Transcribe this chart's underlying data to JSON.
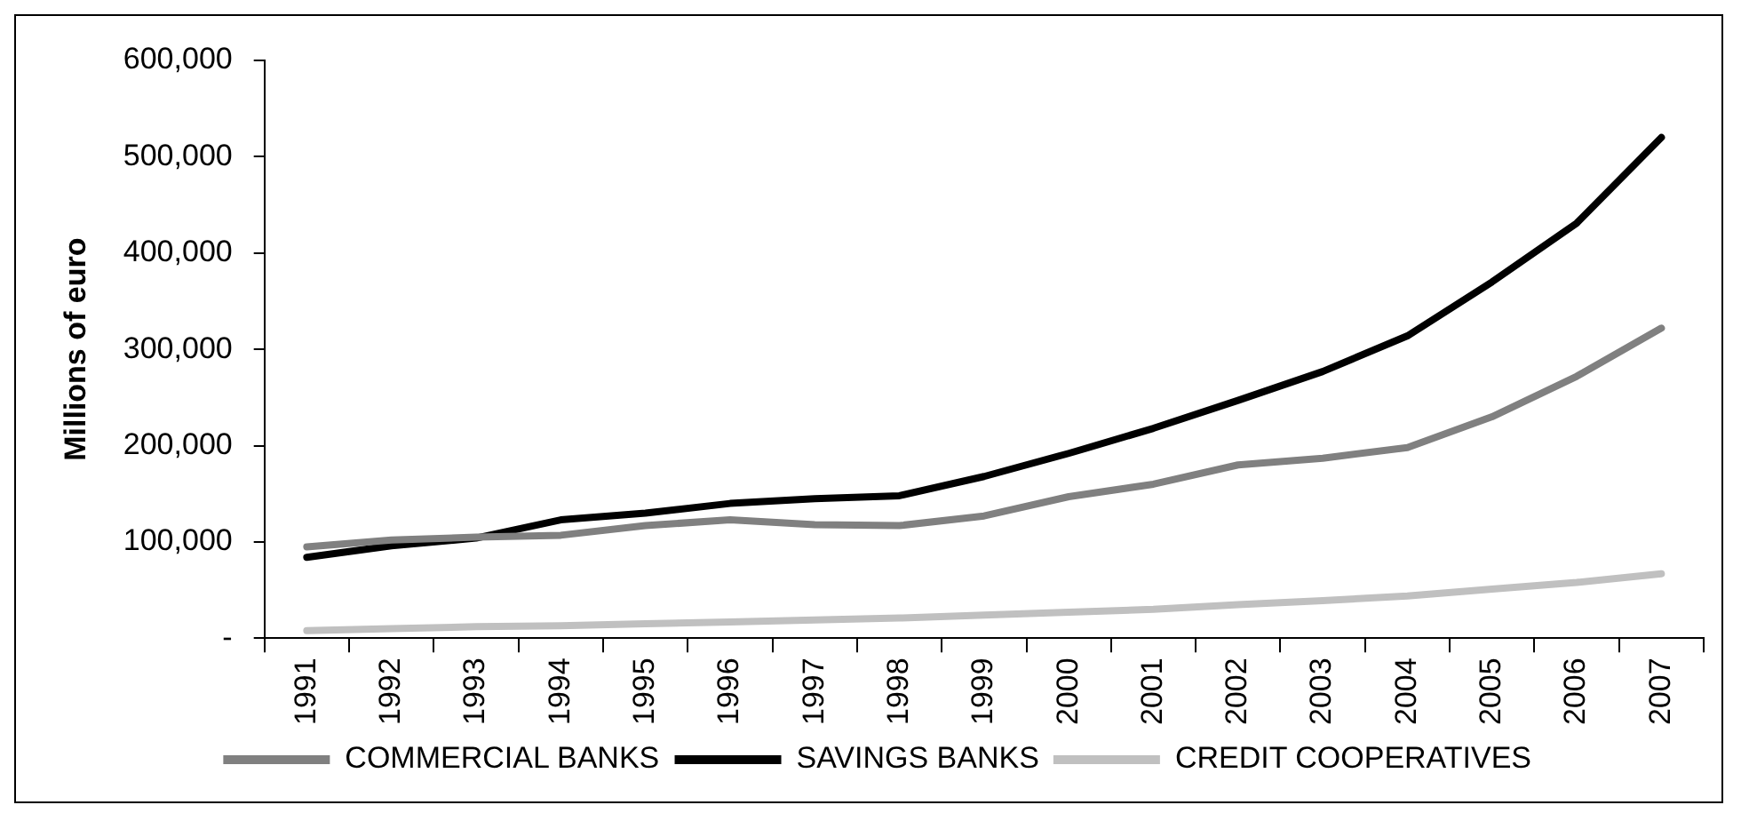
{
  "chart_data": {
    "type": "line",
    "ylabel": "Millions of euro",
    "categories": [
      "1991",
      "1992",
      "1993",
      "1994",
      "1995",
      "1996",
      "1997",
      "1998",
      "1999",
      "2000",
      "2001",
      "2002",
      "2003",
      "2004",
      "2005",
      "2006",
      "2007"
    ],
    "series": [
      {
        "name": "COMMERCIAL BANKS",
        "color": "#808080",
        "values": [
          95000,
          102000,
          105000,
          107000,
          117000,
          123000,
          118000,
          117000,
          127000,
          147000,
          160000,
          180000,
          187000,
          198000,
          230000,
          272000,
          322000
        ]
      },
      {
        "name": "SAVINGS BANKS",
        "color": "#000000",
        "values": [
          84000,
          96000,
          104000,
          123000,
          130000,
          140000,
          145000,
          148000,
          168000,
          192000,
          218000,
          247000,
          277000,
          314000,
          370000,
          431000,
          520000
        ]
      },
      {
        "name": "CREDIT COOPERATIVES",
        "color": "#c0c0c0",
        "values": [
          8000,
          10000,
          12000,
          13000,
          15000,
          17000,
          19000,
          21000,
          24000,
          27000,
          30000,
          35000,
          39000,
          44000,
          51000,
          58000,
          67000
        ]
      }
    ],
    "ylim": [
      0,
      600000
    ],
    "yticks": [
      {
        "value": 0,
        "label": "-"
      },
      {
        "value": 100000,
        "label": "100,000"
      },
      {
        "value": 200000,
        "label": "200,000"
      },
      {
        "value": 300000,
        "label": "300,000"
      },
      {
        "value": 400000,
        "label": "400,000"
      },
      {
        "value": 500000,
        "label": "500,000"
      },
      {
        "value": 600000,
        "label": "600,000"
      }
    ],
    "grid": false,
    "legend": "bottom",
    "marker": "none",
    "line_style": "solid"
  }
}
